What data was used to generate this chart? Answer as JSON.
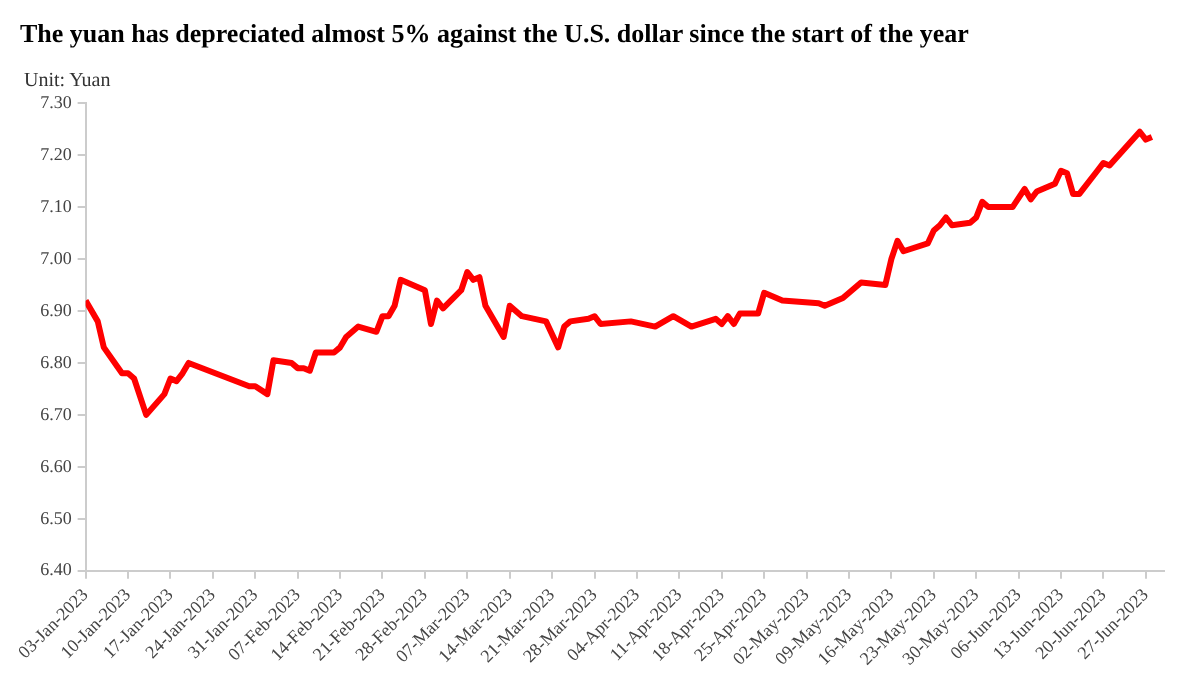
{
  "chart_data": {
    "type": "line",
    "title": "The yuan has depreciated almost 5% against the U.S. dollar since the start of the year",
    "ylabel": "Unit: Yuan",
    "x": [
      "2023-01-03",
      "2023-01-05",
      "2023-01-06",
      "2023-01-09",
      "2023-01-10",
      "2023-01-11",
      "2023-01-13",
      "2023-01-16",
      "2023-01-17",
      "2023-01-18",
      "2023-01-19",
      "2023-01-20",
      "2023-01-30",
      "2023-01-31",
      "2023-02-02",
      "2023-02-03",
      "2023-02-06",
      "2023-02-07",
      "2023-02-08",
      "2023-02-09",
      "2023-02-10",
      "2023-02-13",
      "2023-02-14",
      "2023-02-15",
      "2023-02-17",
      "2023-02-20",
      "2023-02-21",
      "2023-02-22",
      "2023-02-23",
      "2023-02-24",
      "2023-02-28",
      "2023-03-01",
      "2023-03-02",
      "2023-03-03",
      "2023-03-06",
      "2023-03-07",
      "2023-03-08",
      "2023-03-09",
      "2023-03-10",
      "2023-03-13",
      "2023-03-14",
      "2023-03-16",
      "2023-03-20",
      "2023-03-22",
      "2023-03-23",
      "2023-03-24",
      "2023-03-27",
      "2023-03-28",
      "2023-03-29",
      "2023-04-03",
      "2023-04-07",
      "2023-04-10",
      "2023-04-13",
      "2023-04-17",
      "2023-04-18",
      "2023-04-19",
      "2023-04-20",
      "2023-04-21",
      "2023-04-24",
      "2023-04-25",
      "2023-04-28",
      "2023-05-04",
      "2023-05-05",
      "2023-05-08",
      "2023-05-11",
      "2023-05-15",
      "2023-05-16",
      "2023-05-17",
      "2023-05-18",
      "2023-05-22",
      "2023-05-23",
      "2023-05-24",
      "2023-05-25",
      "2023-05-26",
      "2023-05-29",
      "2023-05-30",
      "2023-05-31",
      "2023-06-01",
      "2023-06-05",
      "2023-06-07",
      "2023-06-08",
      "2023-06-09",
      "2023-06-12",
      "2023-06-13",
      "2023-06-14",
      "2023-06-15",
      "2023-06-16",
      "2023-06-19",
      "2023-06-20",
      "2023-06-21",
      "2023-06-26",
      "2023-06-27",
      "2023-06-28"
    ],
    "series": [
      {
        "color": "#ff0000",
        "values": [
          6.92,
          6.88,
          6.83,
          6.78,
          6.78,
          6.77,
          6.7,
          6.74,
          6.77,
          6.765,
          6.78,
          6.8,
          6.755,
          6.755,
          6.74,
          6.805,
          6.8,
          6.79,
          6.79,
          6.785,
          6.82,
          6.82,
          6.83,
          6.85,
          6.87,
          6.86,
          6.89,
          6.89,
          6.91,
          6.96,
          6.94,
          6.875,
          6.92,
          6.905,
          6.94,
          6.975,
          6.96,
          6.965,
          6.91,
          6.85,
          6.91,
          6.89,
          6.88,
          6.83,
          6.87,
          6.88,
          6.885,
          6.89,
          6.875,
          6.88,
          6.87,
          6.89,
          6.87,
          6.885,
          6.875,
          6.89,
          6.875,
          6.895,
          6.895,
          6.935,
          6.92,
          6.915,
          6.91,
          6.925,
          6.955,
          6.95,
          7.0,
          7.035,
          7.015,
          7.03,
          7.055,
          7.065,
          7.08,
          7.065,
          7.07,
          7.08,
          7.11,
          7.1,
          7.1,
          7.135,
          7.115,
          7.13,
          7.145,
          7.17,
          7.165,
          7.125,
          7.125,
          7.17,
          7.185,
          7.18,
          7.245,
          7.23,
          7.235
        ]
      }
    ],
    "xlim": [
      "2023-01-03",
      "2023-06-30"
    ],
    "xticks": [
      {
        "value": "2023-01-03",
        "label": "03-Jan-2023"
      },
      {
        "value": "2023-01-10",
        "label": "10-Jan-2023"
      },
      {
        "value": "2023-01-17",
        "label": "17-Jan-2023"
      },
      {
        "value": "2023-01-24",
        "label": "24-Jan-2023"
      },
      {
        "value": "2023-01-31",
        "label": "31-Jan-2023"
      },
      {
        "value": "2023-02-07",
        "label": "07-Feb-2023"
      },
      {
        "value": "2023-02-14",
        "label": "14-Feb-2023"
      },
      {
        "value": "2023-02-21",
        "label": "21-Feb-2023"
      },
      {
        "value": "2023-02-28",
        "label": "28-Feb-2023"
      },
      {
        "value": "2023-03-07",
        "label": "07-Mar-2023"
      },
      {
        "value": "2023-03-14",
        "label": "14-Mar-2023"
      },
      {
        "value": "2023-03-21",
        "label": "21-Mar-2023"
      },
      {
        "value": "2023-03-28",
        "label": "28-Mar-2023"
      },
      {
        "value": "2023-04-04",
        "label": "04-Apr-2023"
      },
      {
        "value": "2023-04-11",
        "label": "11-Apr-2023"
      },
      {
        "value": "2023-04-18",
        "label": "18-Apr-2023"
      },
      {
        "value": "2023-04-25",
        "label": "25-Apr-2023"
      },
      {
        "value": "2023-05-02",
        "label": "02-May-2023"
      },
      {
        "value": "2023-05-09",
        "label": "09-May-2023"
      },
      {
        "value": "2023-05-16",
        "label": "16-May-2023"
      },
      {
        "value": "2023-05-23",
        "label": "23-May-2023"
      },
      {
        "value": "2023-05-30",
        "label": "30-May-2023"
      },
      {
        "value": "2023-06-06",
        "label": "06-Jun-2023"
      },
      {
        "value": "2023-06-13",
        "label": "13-Jun-2023"
      },
      {
        "value": "2023-06-20",
        "label": "20-Jun-2023"
      },
      {
        "value": "2023-06-27",
        "label": "27-Jun-2023"
      }
    ],
    "ylim": [
      6.4,
      7.3
    ],
    "yticks": [
      {
        "value": 6.4,
        "label": "6.40"
      },
      {
        "value": 6.5,
        "label": "6.50"
      },
      {
        "value": 6.6,
        "label": "6.60"
      },
      {
        "value": 6.7,
        "label": "6.70"
      },
      {
        "value": 6.8,
        "label": "6.80"
      },
      {
        "value": 6.9,
        "label": "6.90"
      },
      {
        "value": 7.0,
        "label": "7.00"
      },
      {
        "value": 7.1,
        "label": "7.10"
      },
      {
        "value": 7.2,
        "label": "7.20"
      },
      {
        "value": 7.3,
        "label": "7.30"
      }
    ],
    "grid": false,
    "legend": false,
    "marker": "none",
    "line_style": "solid"
  }
}
